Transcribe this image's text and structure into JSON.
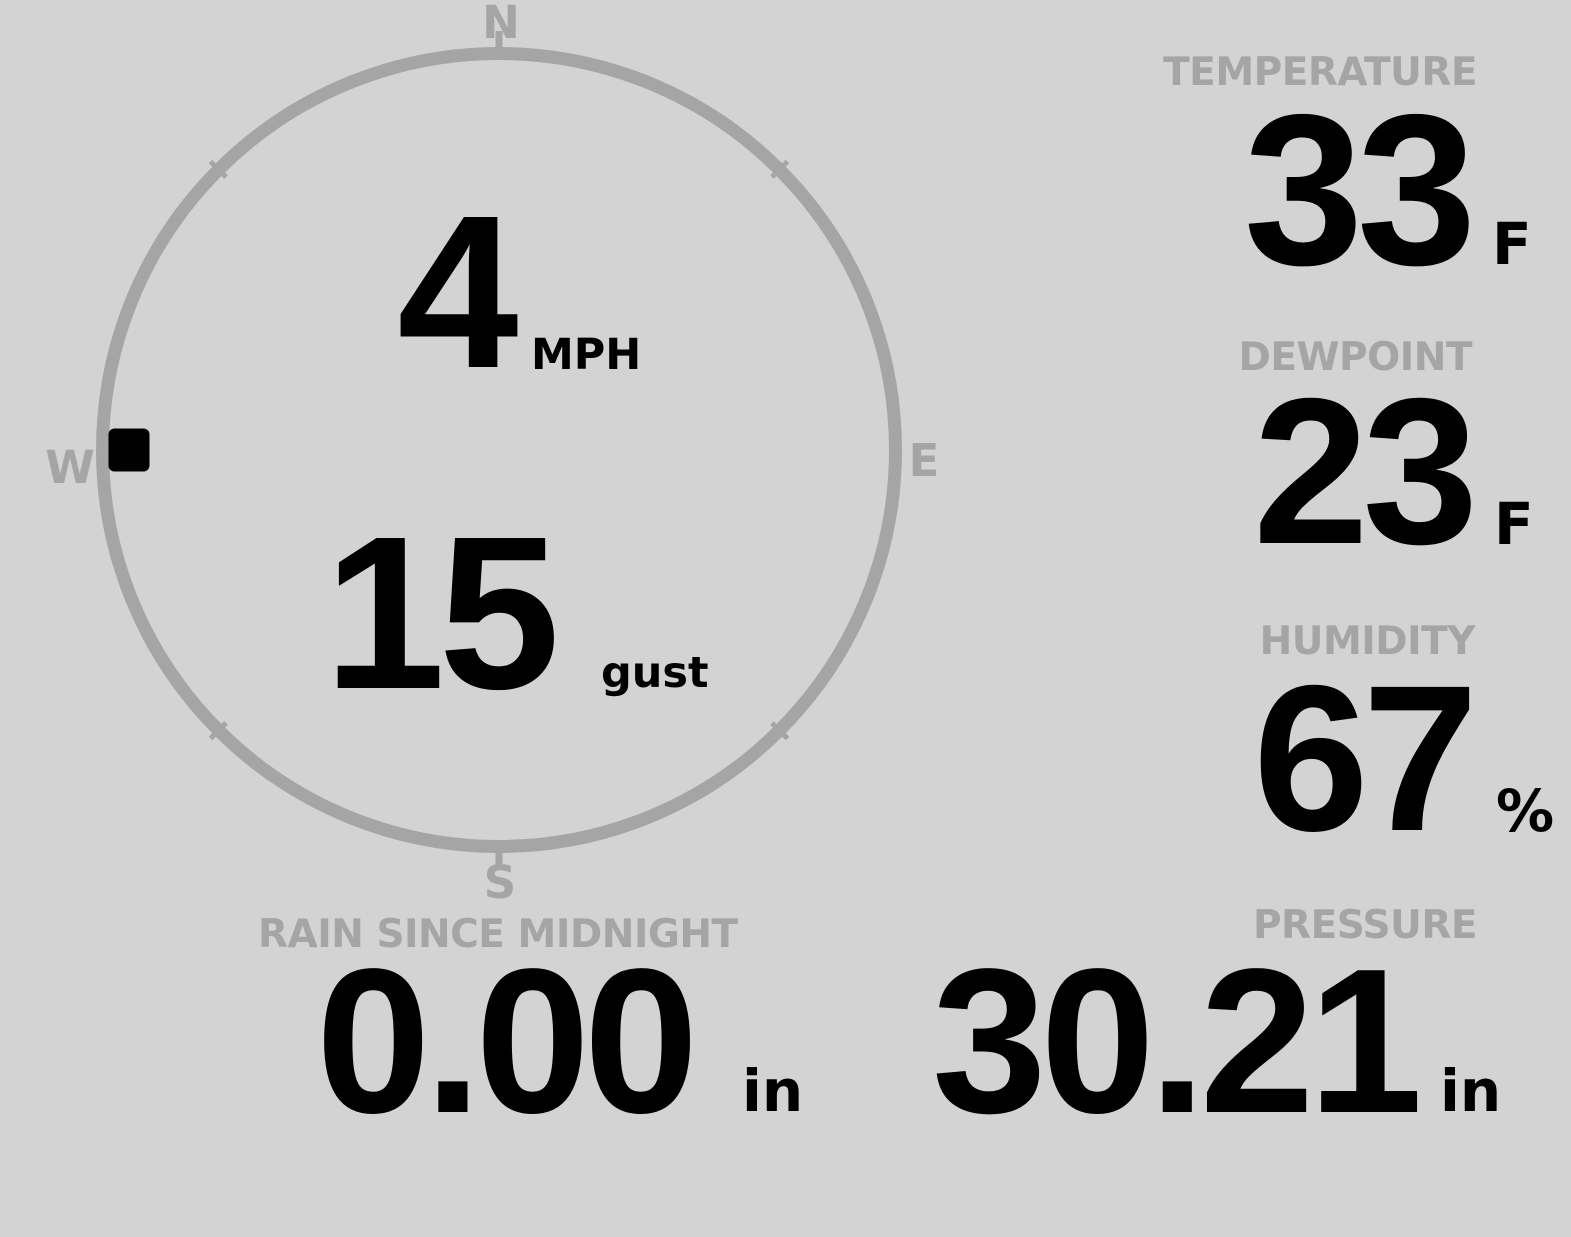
{
  "theme": {
    "background": "#d3d3d3",
    "gauge_color": "#a5a5a5",
    "caption_color": "#a5a5a5",
    "value_color": "#000000",
    "marker_color": "#000000"
  },
  "wind": {
    "compass": {
      "north": "N",
      "east": "E",
      "south": "S",
      "west": "W"
    },
    "direction_degrees": 270,
    "speed": "4",
    "speed_unit": "MPH",
    "gust": "15",
    "gust_unit": "gust"
  },
  "stats": {
    "temperature": {
      "label": "TEMPERATURE",
      "value": "33",
      "unit": "F"
    },
    "dewpoint": {
      "label": "DEWPOINT",
      "value": "23",
      "unit": "F"
    },
    "humidity": {
      "label": "HUMIDITY",
      "value": "67",
      "unit": "%"
    },
    "rain": {
      "label": "RAIN SINCE MIDNIGHT",
      "value": "0.00",
      "unit": "in"
    },
    "pressure": {
      "label": "PRESSURE",
      "value": "30.21",
      "unit": "in"
    }
  }
}
